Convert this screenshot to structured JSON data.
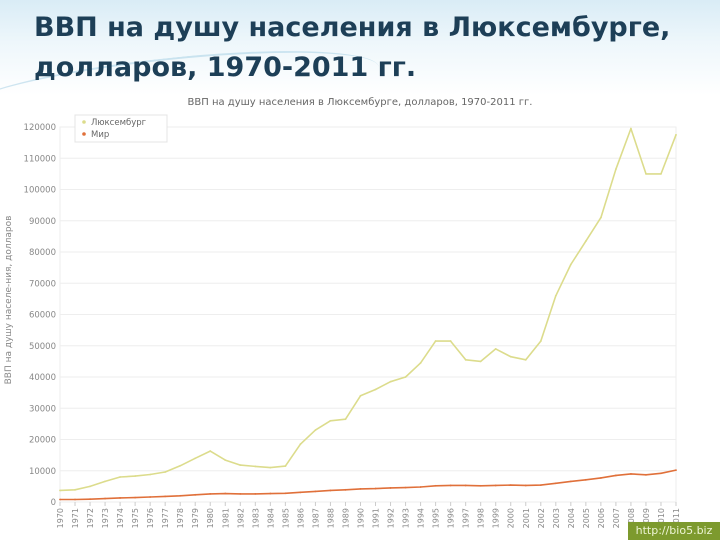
{
  "slide": {
    "title_line1": "ВВП на душу населения в Люксембурге,",
    "title_line2": "долларов, 1970-2011 гг.",
    "watermark": "http://bio5.biz"
  },
  "colors": {
    "luxembourg": "#dcdc8c",
    "world": "#e0703a",
    "grid": "#eeeeee",
    "axis_text": "#888888",
    "title": "#1d3f57"
  },
  "chart_data": {
    "type": "line",
    "title": "ВВП на душу населения в Люксембурге, долларов, 1970-2011 гг.",
    "xlabel": "",
    "ylabel": "ВВП на душу населе-ния, долларов",
    "ylim": [
      0,
      120000
    ],
    "yticks": [
      0,
      10000,
      20000,
      30000,
      40000,
      50000,
      60000,
      70000,
      80000,
      90000,
      100000,
      110000,
      120000
    ],
    "grid": true,
    "legend_position": "top-left",
    "x": [
      "1970",
      "1971",
      "1972",
      "1973",
      "1974",
      "1975",
      "1976",
      "1977",
      "1978",
      "1979",
      "1980",
      "1981",
      "1982",
      "1983",
      "1984",
      "1985",
      "1986",
      "1987",
      "1988",
      "1989",
      "1990",
      "1991",
      "1992",
      "1993",
      "1994",
      "1995",
      "1996",
      "1997",
      "1998",
      "1999",
      "2000",
      "2001",
      "2002",
      "2003",
      "2004",
      "2005",
      "2006",
      "2007",
      "2008",
      "2009",
      "2010",
      "2011"
    ],
    "series": [
      {
        "name": "Люксембург",
        "values": [
          3700,
          3900,
          5000,
          6600,
          8000,
          8300,
          8800,
          9600,
          11600,
          14000,
          16300,
          13400,
          11800,
          11400,
          11000,
          11500,
          18500,
          23000,
          26000,
          26500,
          34000,
          36000,
          38500,
          40000,
          44500,
          51500,
          51500,
          45500,
          45000,
          49000,
          46500,
          45500,
          51500,
          66000,
          76000,
          83500,
          91000,
          106500,
          119500,
          105000,
          105000,
          117500
        ]
      },
      {
        "name": "Мир",
        "values": [
          800,
          800,
          900,
          1100,
          1300,
          1400,
          1600,
          1800,
          2000,
          2300,
          2600,
          2700,
          2600,
          2600,
          2700,
          2800,
          3100,
          3400,
          3700,
          3900,
          4200,
          4300,
          4500,
          4600,
          4800,
          5200,
          5300,
          5300,
          5200,
          5300,
          5400,
          5300,
          5400,
          6000,
          6600,
          7100,
          7700,
          8500,
          9000,
          8700,
          9200,
          10200
        ]
      }
    ]
  }
}
